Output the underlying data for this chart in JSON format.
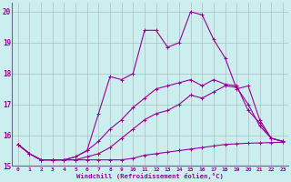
{
  "xlabel": "Windchill (Refroidissement éolien,°C)",
  "x": [
    0,
    1,
    2,
    3,
    4,
    5,
    6,
    7,
    8,
    9,
    10,
    11,
    12,
    13,
    14,
    15,
    16,
    17,
    18,
    19,
    20,
    21,
    22,
    23
  ],
  "series1": [
    15.7,
    15.4,
    15.2,
    15.2,
    15.2,
    15.2,
    15.2,
    15.2,
    15.2,
    15.2,
    15.25,
    15.35,
    15.4,
    15.45,
    15.5,
    15.55,
    15.6,
    15.65,
    15.7,
    15.72,
    15.74,
    15.75,
    15.76,
    15.77
  ],
  "series2": [
    15.7,
    15.4,
    15.2,
    15.2,
    15.2,
    15.2,
    15.3,
    15.4,
    15.6,
    15.9,
    16.2,
    16.5,
    16.7,
    16.8,
    17.0,
    17.3,
    17.2,
    17.4,
    17.6,
    17.55,
    17.0,
    16.3,
    15.9,
    15.8
  ],
  "series3": [
    15.7,
    15.4,
    15.2,
    15.2,
    15.2,
    15.3,
    15.5,
    15.8,
    16.2,
    16.5,
    16.9,
    17.2,
    17.5,
    17.6,
    17.7,
    17.8,
    17.6,
    17.8,
    17.65,
    17.6,
    16.8,
    16.4,
    15.9,
    15.8
  ],
  "series4": [
    15.7,
    15.4,
    15.2,
    15.2,
    15.2,
    15.3,
    15.5,
    16.7,
    17.9,
    17.8,
    18.0,
    19.4,
    19.4,
    18.85,
    19.0,
    20.0,
    19.9,
    19.1,
    18.5,
    17.5,
    17.6,
    16.5,
    15.9,
    15.8
  ],
  "line_color": "#990099",
  "bg_color": "#cceeee",
  "grid_color": "#aabbbb",
  "ylim": [
    15.0,
    20.3
  ],
  "xlim": [
    -0.5,
    23.5
  ]
}
